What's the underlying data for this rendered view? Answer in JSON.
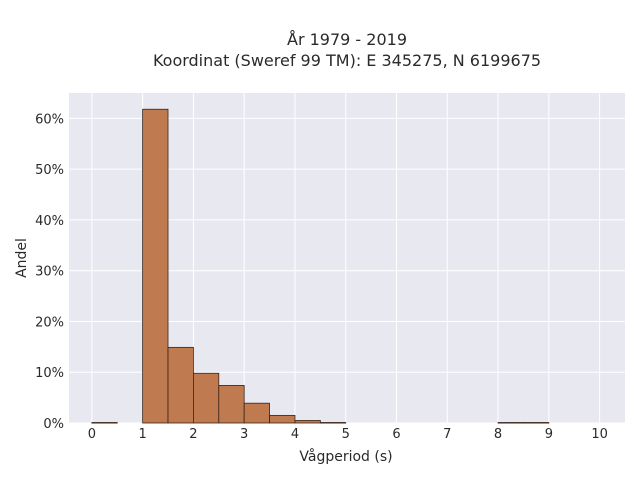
{
  "chart_data": {
    "type": "bar",
    "title_line1": "År 1979 - 2019",
    "title_line2": "Koordinat (Sweref 99 TM): E 345275, N 6199675",
    "xlabel": "Vågperiod (s)",
    "ylabel": "Andel",
    "x_ticks": [
      "0",
      "1",
      "2",
      "3",
      "4",
      "5",
      "6",
      "7",
      "8",
      "9",
      "10"
    ],
    "y_ticks": [
      "0%",
      "10%",
      "20%",
      "30%",
      "40%",
      "50%",
      "60%"
    ],
    "xlim": [
      -0.45,
      10.5
    ],
    "ylim": [
      0,
      65
    ],
    "bin_width": 0.5,
    "bins": [
      {
        "x0": 0.0,
        "value": 0.1
      },
      {
        "x0": 1.0,
        "value": 61.8
      },
      {
        "x0": 1.5,
        "value": 14.9
      },
      {
        "x0": 2.0,
        "value": 9.8
      },
      {
        "x0": 2.5,
        "value": 7.4
      },
      {
        "x0": 3.0,
        "value": 3.9
      },
      {
        "x0": 3.5,
        "value": 1.5
      },
      {
        "x0": 4.0,
        "value": 0.5
      },
      {
        "x0": 4.5,
        "value": 0.1
      },
      {
        "x0": 8.0,
        "value": 0.1
      },
      {
        "x0": 8.5,
        "value": 0.1
      }
    ],
    "grid": true,
    "bar_color": "#c07a50",
    "bar_edge": "#3a2418",
    "plot_bg": "#e8e8f1"
  }
}
